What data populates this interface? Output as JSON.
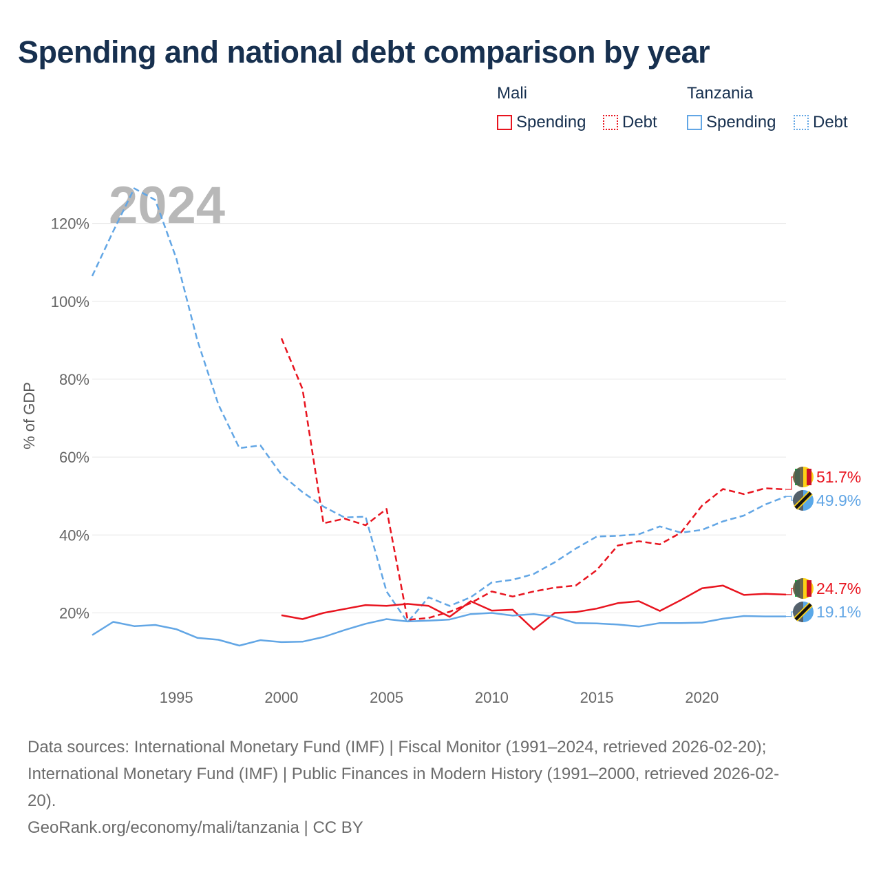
{
  "title": "Spending and national debt comparison by year",
  "legend": {
    "groups": [
      {
        "name": "Mali",
        "color": "#e8141f",
        "items": [
          {
            "label": "Spending",
            "style": "solid"
          },
          {
            "label": "Debt",
            "style": "dotted"
          }
        ]
      },
      {
        "name": "Tanzania",
        "color": "#62a6e5",
        "items": [
          {
            "label": "Spending",
            "style": "solid"
          },
          {
            "label": "Debt",
            "style": "dotted"
          }
        ]
      }
    ]
  },
  "sources": {
    "line1": "Data sources: International Monetary Fund (IMF) | Fiscal Monitor (1991–2024, retrieved 2026-02-20);",
    "line2": "International Monetary Fund (IMF) | Public Finances in Modern History (1991–2000, retrieved 2026-02-",
    "line3": "20).",
    "attribution": "GeoRank.org/economy/mali/tanzania | CC BY"
  },
  "chart_data": {
    "type": "line",
    "year_label": "2024",
    "ylabel": "% of GDP",
    "xlim": [
      1991,
      2024
    ],
    "ylim": [
      4,
      130
    ],
    "yticks": [
      20,
      40,
      60,
      80,
      100,
      120
    ],
    "ytick_labels": [
      "20%",
      "40%",
      "60%",
      "80%",
      "100%",
      "120%"
    ],
    "xticks": [
      1995,
      2000,
      2005,
      2010,
      2015,
      2020
    ],
    "xtick_labels": [
      "1995",
      "2000",
      "2005",
      "2010",
      "2015",
      "2020"
    ],
    "series": [
      {
        "name": "Tanzania Debt",
        "country": "Tanzania",
        "kind": "Debt",
        "color": "#62a6e5",
        "dash": "dashed",
        "end_label": "49.9%",
        "points": [
          [
            1991,
            106.5
          ],
          [
            1992,
            118
          ],
          [
            1993,
            129
          ],
          [
            1994,
            126
          ],
          [
            1995,
            111
          ],
          [
            1996,
            90
          ],
          [
            1997,
            73.5
          ],
          [
            1998,
            62.3
          ],
          [
            1999,
            63
          ],
          [
            2000,
            55.5
          ],
          [
            2001,
            51
          ],
          [
            2002,
            47.3
          ],
          [
            2003,
            44.5
          ],
          [
            2004,
            44.7
          ],
          [
            2005,
            25.5
          ],
          [
            2006,
            17.6
          ],
          [
            2007,
            24
          ],
          [
            2008,
            21.8
          ],
          [
            2009,
            24
          ],
          [
            2010,
            27.8
          ],
          [
            2011,
            28.5
          ],
          [
            2012,
            30
          ],
          [
            2013,
            33
          ],
          [
            2014,
            36.5
          ],
          [
            2015,
            39.6
          ],
          [
            2016,
            39.8
          ],
          [
            2017,
            40.2
          ],
          [
            2018,
            42.2
          ],
          [
            2019,
            40.6
          ],
          [
            2020,
            41.3
          ],
          [
            2021,
            43.5
          ],
          [
            2022,
            45
          ],
          [
            2023,
            47.8
          ],
          [
            2024,
            49.9
          ]
        ]
      },
      {
        "name": "Mali Debt",
        "country": "Mali",
        "kind": "Debt",
        "color": "#e8141f",
        "dash": "dashed",
        "end_label": "51.7%",
        "points": [
          [
            2000,
            90.5
          ],
          [
            2001,
            77.5
          ],
          [
            2002,
            43
          ],
          [
            2003,
            44.2
          ],
          [
            2004,
            42.5
          ],
          [
            2005,
            46.7
          ],
          [
            2006,
            18.2
          ],
          [
            2007,
            18.7
          ],
          [
            2008,
            20.3
          ],
          [
            2009,
            22.5
          ],
          [
            2010,
            25.5
          ],
          [
            2011,
            24.2
          ],
          [
            2012,
            25.5
          ],
          [
            2013,
            26.5
          ],
          [
            2014,
            27
          ],
          [
            2015,
            31
          ],
          [
            2016,
            37.3
          ],
          [
            2017,
            38.4
          ],
          [
            2018,
            37.6
          ],
          [
            2019,
            40.6
          ],
          [
            2020,
            47.5
          ],
          [
            2021,
            51.8
          ],
          [
            2022,
            50.5
          ],
          [
            2023,
            52
          ],
          [
            2024,
            51.7
          ]
        ]
      },
      {
        "name": "Mali Spending",
        "country": "Mali",
        "kind": "Spending",
        "color": "#e8141f",
        "dash": "solid",
        "end_label": "24.7%",
        "points": [
          [
            2000,
            19.4
          ],
          [
            2001,
            18.4
          ],
          [
            2002,
            20
          ],
          [
            2003,
            21
          ],
          [
            2004,
            22
          ],
          [
            2005,
            21.8
          ],
          [
            2006,
            22.3
          ],
          [
            2007,
            21.8
          ],
          [
            2008,
            19
          ],
          [
            2009,
            23
          ],
          [
            2010,
            20.6
          ],
          [
            2011,
            20.8
          ],
          [
            2012,
            15.7
          ],
          [
            2013,
            20
          ],
          [
            2014,
            20.2
          ],
          [
            2015,
            21.1
          ],
          [
            2016,
            22.5
          ],
          [
            2017,
            23
          ],
          [
            2018,
            20.5
          ],
          [
            2019,
            23.3
          ],
          [
            2020,
            26.3
          ],
          [
            2021,
            27
          ],
          [
            2022,
            24.6
          ],
          [
            2023,
            24.9
          ],
          [
            2024,
            24.7
          ]
        ]
      },
      {
        "name": "Tanzania Spending",
        "country": "Tanzania",
        "kind": "Spending",
        "color": "#62a6e5",
        "dash": "solid",
        "end_label": "19.1%",
        "points": [
          [
            1991,
            14.3
          ],
          [
            1992,
            17.7
          ],
          [
            1993,
            16.6
          ],
          [
            1994,
            16.9
          ],
          [
            1995,
            15.8
          ],
          [
            1996,
            13.6
          ],
          [
            1997,
            13.1
          ],
          [
            1998,
            11.6
          ],
          [
            1999,
            13
          ],
          [
            2000,
            12.5
          ],
          [
            2001,
            12.6
          ],
          [
            2002,
            13.8
          ],
          [
            2003,
            15.6
          ],
          [
            2004,
            17.2
          ],
          [
            2005,
            18.4
          ],
          [
            2006,
            17.8
          ],
          [
            2007,
            18
          ],
          [
            2008,
            18.3
          ],
          [
            2009,
            19.7
          ],
          [
            2010,
            20
          ],
          [
            2011,
            19.3
          ],
          [
            2012,
            19.7
          ],
          [
            2013,
            19
          ],
          [
            2014,
            17.4
          ],
          [
            2015,
            17.3
          ],
          [
            2016,
            17
          ],
          [
            2017,
            16.5
          ],
          [
            2018,
            17.4
          ],
          [
            2019,
            17.4
          ],
          [
            2020,
            17.5
          ],
          [
            2021,
            18.5
          ],
          [
            2022,
            19.2
          ],
          [
            2023,
            19.1
          ],
          [
            2024,
            19.1
          ]
        ]
      }
    ]
  }
}
